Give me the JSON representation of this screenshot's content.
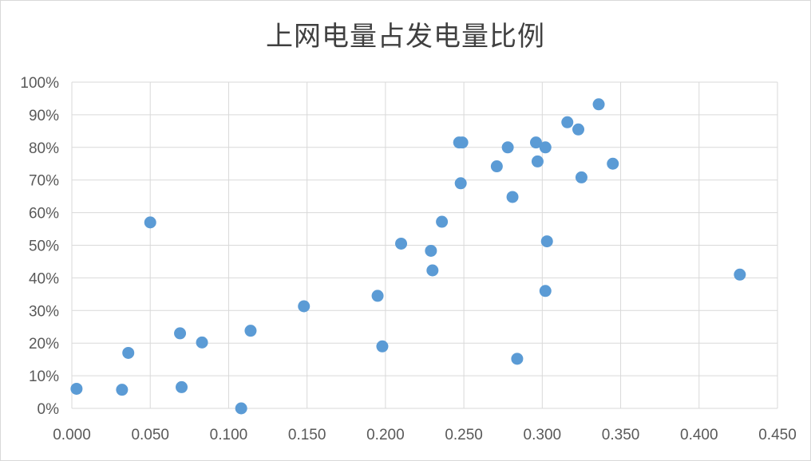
{
  "chart_data": {
    "type": "scatter",
    "title": "上网电量占发电量比例",
    "xlabel": "",
    "ylabel": "",
    "xlim": [
      0,
      0.45
    ],
    "ylim": [
      0,
      1.0
    ],
    "x_ticks": [
      "0.000",
      "0.050",
      "0.100",
      "0.150",
      "0.200",
      "0.250",
      "0.300",
      "0.350",
      "0.400",
      "0.450"
    ],
    "y_ticks": [
      "0%",
      "10%",
      "20%",
      "30%",
      "40%",
      "50%",
      "60%",
      "70%",
      "80%",
      "90%",
      "100%"
    ],
    "grid": true,
    "marker_color": "#5b9bd5",
    "series": [
      {
        "points": [
          [
            0.003,
            0.06
          ],
          [
            0.032,
            0.057
          ],
          [
            0.036,
            0.17
          ],
          [
            0.05,
            0.57
          ],
          [
            0.069,
            0.23
          ],
          [
            0.07,
            0.065
          ],
          [
            0.083,
            0.202
          ],
          [
            0.108,
            0.0
          ],
          [
            0.114,
            0.238
          ],
          [
            0.148,
            0.313
          ],
          [
            0.195,
            0.345
          ],
          [
            0.198,
            0.19
          ],
          [
            0.21,
            0.505
          ],
          [
            0.229,
            0.483
          ],
          [
            0.23,
            0.423
          ],
          [
            0.236,
            0.572
          ],
          [
            0.247,
            0.815
          ],
          [
            0.249,
            0.815
          ],
          [
            0.248,
            0.69
          ],
          [
            0.271,
            0.742
          ],
          [
            0.278,
            0.8
          ],
          [
            0.281,
            0.648
          ],
          [
            0.284,
            0.152
          ],
          [
            0.296,
            0.815
          ],
          [
            0.297,
            0.757
          ],
          [
            0.302,
            0.8
          ],
          [
            0.303,
            0.512
          ],
          [
            0.302,
            0.36
          ],
          [
            0.316,
            0.877
          ],
          [
            0.323,
            0.855
          ],
          [
            0.325,
            0.708
          ],
          [
            0.336,
            0.932
          ],
          [
            0.345,
            0.75
          ],
          [
            0.426,
            0.41
          ]
        ]
      }
    ]
  }
}
